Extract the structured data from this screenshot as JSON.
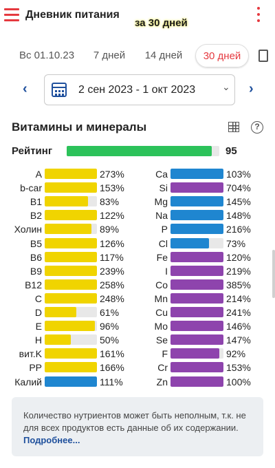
{
  "app": {
    "title": "Дневник питания",
    "overlay": "за 30 дней"
  },
  "tabs": [
    {
      "label": "Вс 01.10.23"
    },
    {
      "label": "7 дней"
    },
    {
      "label": "14 дней"
    },
    {
      "label": "30 дней",
      "active": true
    }
  ],
  "period": {
    "range": "2 сен 2023 - 1 окт 2023"
  },
  "section": {
    "title": "Витамины и минералы"
  },
  "rating": {
    "label": "Рейтинг",
    "value": "95",
    "fill_fraction": 0.95
  },
  "colors": {
    "accent": "#e5393f",
    "yellow": "#f0d400",
    "blue": "#1f86d0",
    "purple": "#8e44ad",
    "green": "#2cc25a",
    "link": "#1e4f9c"
  },
  "nutrients_left": [
    {
      "name": "A",
      "pct": "273%",
      "color": "yellow"
    },
    {
      "name": "b-car",
      "pct": "153%",
      "color": "yellow"
    },
    {
      "name": "B1",
      "pct": "83%",
      "color": "yellow"
    },
    {
      "name": "B2",
      "pct": "122%",
      "color": "yellow"
    },
    {
      "name": "Холин",
      "pct": "89%",
      "color": "yellow"
    },
    {
      "name": "B5",
      "pct": "126%",
      "color": "yellow"
    },
    {
      "name": "B6",
      "pct": "117%",
      "color": "yellow"
    },
    {
      "name": "B9",
      "pct": "239%",
      "color": "yellow"
    },
    {
      "name": "B12",
      "pct": "258%",
      "color": "yellow"
    },
    {
      "name": "C",
      "pct": "248%",
      "color": "yellow"
    },
    {
      "name": "D",
      "pct": "61%",
      "color": "yellow"
    },
    {
      "name": "E",
      "pct": "96%",
      "color": "yellow"
    },
    {
      "name": "H",
      "pct": "50%",
      "color": "yellow"
    },
    {
      "name": "вит.K",
      "pct": "161%",
      "color": "yellow"
    },
    {
      "name": "PP",
      "pct": "166%",
      "color": "yellow"
    },
    {
      "name": "Калий",
      "pct": "111%",
      "color": "blue"
    }
  ],
  "nutrients_right": [
    {
      "name": "Ca",
      "pct": "103%",
      "color": "blue"
    },
    {
      "name": "Si",
      "pct": "704%",
      "color": "purple"
    },
    {
      "name": "Mg",
      "pct": "145%",
      "color": "blue"
    },
    {
      "name": "Na",
      "pct": "148%",
      "color": "blue"
    },
    {
      "name": "P",
      "pct": "216%",
      "color": "blue"
    },
    {
      "name": "Cl",
      "pct": "73%",
      "color": "blue"
    },
    {
      "name": "Fe",
      "pct": "120%",
      "color": "purple"
    },
    {
      "name": "I",
      "pct": "219%",
      "color": "purple"
    },
    {
      "name": "Co",
      "pct": "385%",
      "color": "purple"
    },
    {
      "name": "Mn",
      "pct": "214%",
      "color": "purple"
    },
    {
      "name": "Cu",
      "pct": "241%",
      "color": "purple"
    },
    {
      "name": "Mo",
      "pct": "146%",
      "color": "purple"
    },
    {
      "name": "Se",
      "pct": "147%",
      "color": "purple"
    },
    {
      "name": "F",
      "pct": "92%",
      "color": "purple"
    },
    {
      "name": "Cr",
      "pct": "153%",
      "color": "purple"
    },
    {
      "name": "Zn",
      "pct": "100%",
      "color": "purple"
    }
  ],
  "note": {
    "text": "Количество нутриентов может быть неполным, т.к. не для всех продуктов есть данные об их содержании. ",
    "link": "Подробнее..."
  },
  "icons": [
    "menu-icon",
    "more-vert-icon",
    "document-icon",
    "chevron-left-icon",
    "chevron-right-icon",
    "calendar-icon",
    "chevron-down-icon",
    "table-icon",
    "help-icon"
  ]
}
